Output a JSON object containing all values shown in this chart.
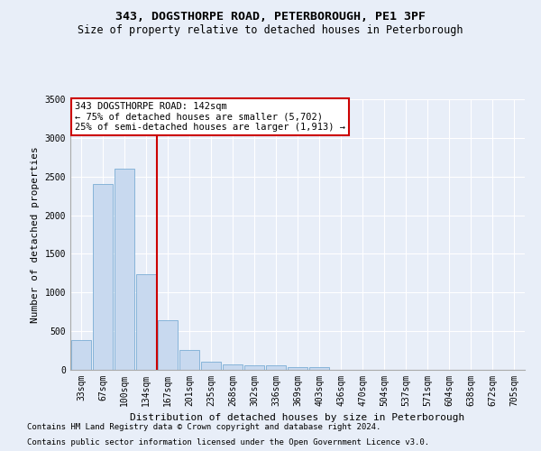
{
  "title": "343, DOGSTHORPE ROAD, PETERBOROUGH, PE1 3PF",
  "subtitle": "Size of property relative to detached houses in Peterborough",
  "xlabel": "Distribution of detached houses by size in Peterborough",
  "ylabel": "Number of detached properties",
  "categories": [
    "33sqm",
    "67sqm",
    "100sqm",
    "134sqm",
    "167sqm",
    "201sqm",
    "235sqm",
    "268sqm",
    "302sqm",
    "336sqm",
    "369sqm",
    "403sqm",
    "436sqm",
    "470sqm",
    "504sqm",
    "537sqm",
    "571sqm",
    "604sqm",
    "638sqm",
    "672sqm",
    "705sqm"
  ],
  "values": [
    390,
    2400,
    2600,
    1240,
    640,
    260,
    100,
    65,
    60,
    55,
    35,
    30,
    0,
    0,
    0,
    0,
    0,
    0,
    0,
    0,
    0
  ],
  "bar_color": "#c8d9ef",
  "bar_edge_color": "#7aadd4",
  "redline_x": 3.5,
  "annotation_line1": "343 DOGSTHORPE ROAD: 142sqm",
  "annotation_line2": "← 75% of detached houses are smaller (5,702)",
  "annotation_line3": "25% of semi-detached houses are larger (1,913) →",
  "annotation_box_color": "#ffffff",
  "annotation_box_edge": "#cc0000",
  "vline_color": "#cc0000",
  "ylim": [
    0,
    3500
  ],
  "yticks": [
    0,
    500,
    1000,
    1500,
    2000,
    2500,
    3000,
    3500
  ],
  "footer_line1": "Contains HM Land Registry data © Crown copyright and database right 2024.",
  "footer_line2": "Contains public sector information licensed under the Open Government Licence v3.0.",
  "background_color": "#e8eef8",
  "plot_bg_color": "#e8eef8",
  "title_fontsize": 9.5,
  "subtitle_fontsize": 8.5,
  "axis_label_fontsize": 8,
  "tick_fontsize": 7,
  "footer_fontsize": 6.5,
  "annotation_fontsize": 7.5
}
